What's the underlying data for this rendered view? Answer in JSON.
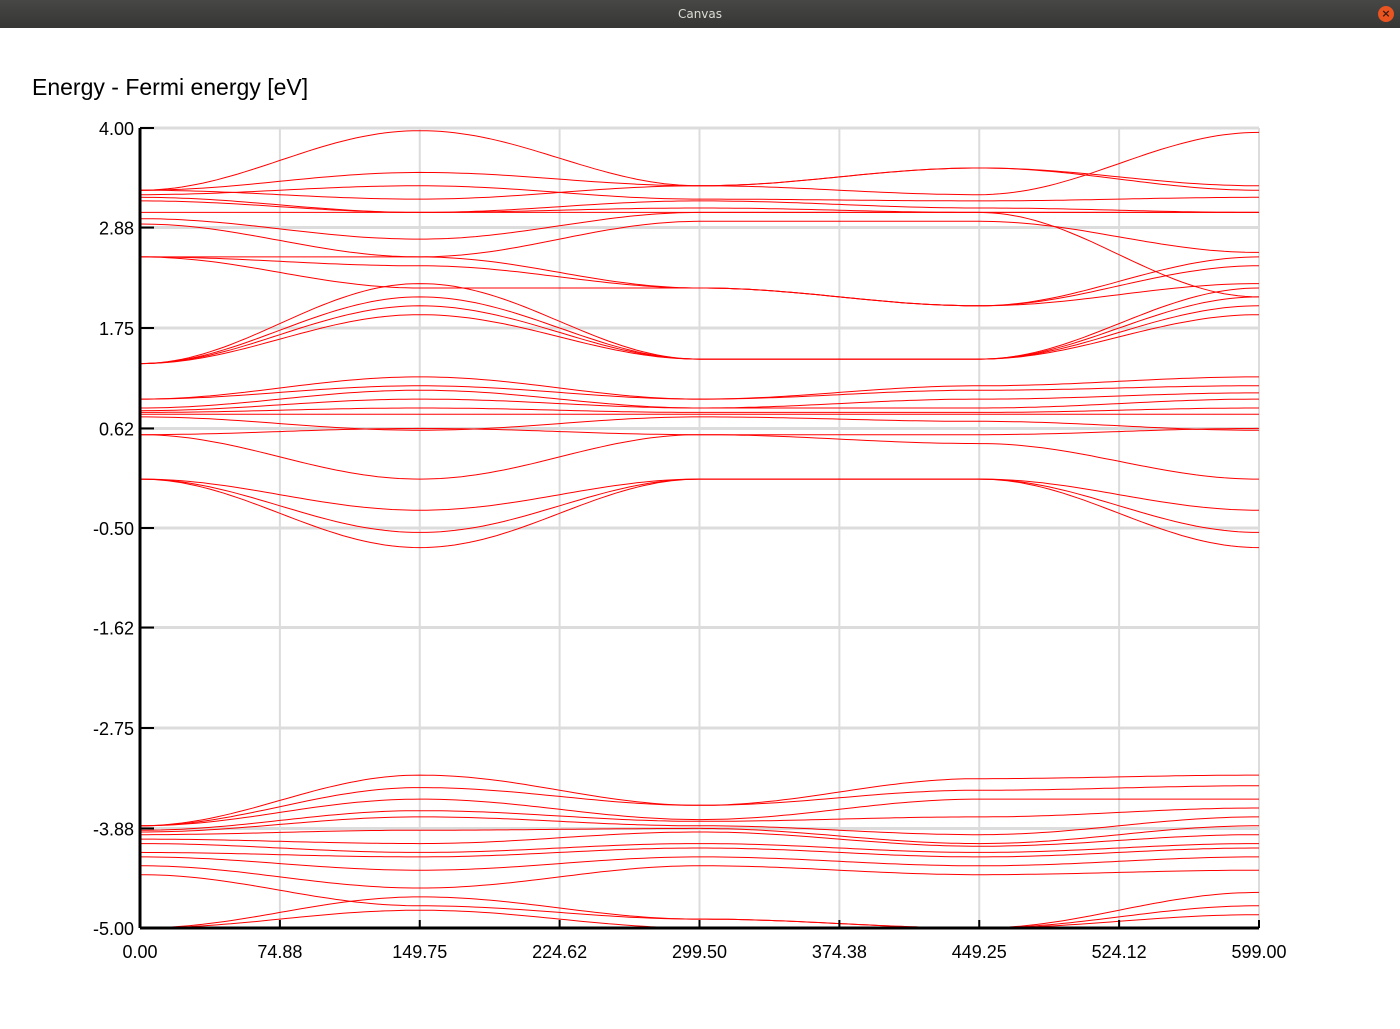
{
  "window": {
    "title": "Canvas",
    "close_icon": "close-icon",
    "close_glyph": "×"
  },
  "colors": {
    "band": "#ff0000",
    "grid": "#dcdcdc",
    "axis": "#000000",
    "close": "#e95420"
  },
  "chart_data": {
    "type": "line",
    "title": "",
    "ylabel": "Energy - Fermi energy  [eV]",
    "xlabel": "",
    "xlim": [
      0,
      599
    ],
    "ylim": [
      -5,
      4
    ],
    "x_ticks": [
      "0.00",
      "74.88",
      "149.75",
      "224.62",
      "299.50",
      "374.38",
      "449.25",
      "524.12",
      "599.00"
    ],
    "y_ticks": [
      "4.00",
      "2.88",
      "1.75",
      "0.62",
      "-0.50",
      "-1.62",
      "-2.75",
      "-3.88",
      "-5.00"
    ],
    "grid": true,
    "legend": "none",
    "x_nodes": [
      0,
      149.75,
      299.5,
      449.25,
      599
    ],
    "series": [
      {
        "values": [
          3.3,
          3.97,
          3.35,
          3.25,
          3.95
        ]
      },
      {
        "values": [
          3.3,
          3.5,
          3.35,
          3.55,
          3.35
        ]
      },
      {
        "values": [
          3.3,
          3.2,
          3.35,
          3.55,
          3.3
        ]
      },
      {
        "values": [
          3.25,
          3.35,
          3.2,
          3.18,
          3.22
        ]
      },
      {
        "values": [
          3.22,
          3.05,
          3.18,
          3.1,
          3.05
        ]
      },
      {
        "values": [
          3.18,
          3.05,
          3.1,
          3.05,
          3.05
        ]
      },
      {
        "values": [
          3.05,
          3.05,
          3.05,
          3.05,
          3.05
        ]
      },
      {
        "values": [
          2.98,
          2.75,
          3.05,
          3.05,
          2.1
        ]
      },
      {
        "values": [
          2.92,
          2.55,
          2.95,
          2.95,
          2.6
        ]
      },
      {
        "values": [
          2.55,
          2.55,
          2.2,
          2.0,
          2.55
        ]
      },
      {
        "values": [
          2.55,
          2.45,
          2.2,
          2.0,
          2.45
        ]
      },
      {
        "values": [
          2.55,
          2.2,
          2.2,
          2.0,
          2.25
        ]
      },
      {
        "values": [
          1.35,
          2.25,
          1.4,
          1.4,
          2.2
        ]
      },
      {
        "values": [
          1.35,
          2.1,
          1.4,
          1.4,
          2.1
        ]
      },
      {
        "values": [
          1.35,
          2.0,
          1.4,
          1.4,
          2.0
        ]
      },
      {
        "values": [
          1.35,
          1.9,
          1.4,
          1.4,
          1.9
        ]
      },
      {
        "values": [
          0.95,
          1.2,
          0.95,
          1.1,
          1.2
        ]
      },
      {
        "values": [
          0.95,
          1.1,
          0.95,
          1.05,
          1.1
        ]
      },
      {
        "values": [
          0.85,
          1.05,
          0.85,
          0.95,
          1.02
        ]
      },
      {
        "values": [
          0.82,
          0.95,
          0.85,
          0.85,
          0.95
        ]
      },
      {
        "values": [
          0.8,
          0.85,
          0.8,
          0.8,
          0.85
        ]
      },
      {
        "values": [
          0.78,
          0.78,
          0.78,
          0.78,
          0.78
        ]
      },
      {
        "values": [
          0.75,
          0.6,
          0.75,
          0.7,
          0.6
        ]
      },
      {
        "values": [
          0.55,
          0.62,
          0.55,
          0.55,
          0.62
        ]
      },
      {
        "values": [
          0.55,
          0.05,
          0.55,
          0.45,
          0.05
        ]
      },
      {
        "values": [
          0.05,
          -0.3,
          0.05,
          0.05,
          -0.3
        ]
      },
      {
        "values": [
          0.05,
          -0.55,
          0.05,
          0.05,
          -0.55
        ]
      },
      {
        "values": [
          0.05,
          -0.72,
          0.05,
          0.05,
          -0.72
        ]
      },
      {
        "values": [
          -3.85,
          -3.28,
          -3.62,
          -3.32,
          -3.28
        ]
      },
      {
        "values": [
          -3.85,
          -3.42,
          -3.62,
          -3.45,
          -3.4
        ]
      },
      {
        "values": [
          -3.85,
          -3.55,
          -3.78,
          -3.55,
          -3.55
        ]
      },
      {
        "values": [
          -3.9,
          -3.68,
          -3.8,
          -3.75,
          -3.65
        ]
      },
      {
        "values": [
          -3.92,
          -3.75,
          -3.85,
          -3.95,
          -3.75
        ]
      },
      {
        "values": [
          -3.95,
          -3.9,
          -3.88,
          -4.05,
          -3.85
        ]
      },
      {
        "values": [
          -4.0,
          -4.05,
          -3.92,
          -4.08,
          -3.95
        ]
      },
      {
        "values": [
          -4.05,
          -4.15,
          -4.05,
          -4.15,
          -4.05
        ]
      },
      {
        "values": [
          -4.15,
          -4.2,
          -4.1,
          -4.2,
          -4.1
        ]
      },
      {
        "values": [
          -4.2,
          -4.35,
          -4.2,
          -4.3,
          -4.2
        ]
      },
      {
        "values": [
          -4.3,
          -4.55,
          -4.3,
          -4.4,
          -4.35
        ]
      },
      {
        "values": [
          -4.4,
          -4.75,
          -4.9,
          -5.0,
          -4.6
        ]
      },
      {
        "values": [
          -5.0,
          -4.65,
          -4.9,
          -5.0,
          -4.75
        ]
      },
      {
        "values": [
          -5.0,
          -4.8,
          -5.0,
          -5.0,
          -4.85
        ]
      }
    ]
  }
}
